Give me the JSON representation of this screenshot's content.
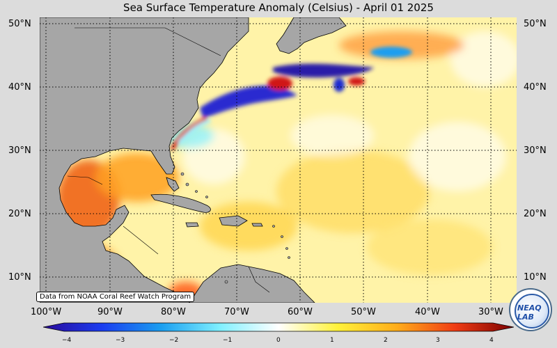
{
  "title": "Sea Surface Temperature Anomaly (Celsius) - April 01 2025",
  "map": {
    "lat_labels": [
      "50°N",
      "40°N",
      "30°N",
      "20°N",
      "10°N"
    ],
    "lon_labels": [
      "100°W",
      "90°W",
      "80°W",
      "70°W",
      "60°W",
      "50°W",
      "40°W",
      "30°W"
    ],
    "land_color": "#a6a6a6",
    "ocean_base_color": "#fff3a8"
  },
  "credit": "Data from NOAA Coral Reef Watch Program",
  "colorbar": {
    "ticks": [
      "−4",
      "−3",
      "−2",
      "−1",
      "0",
      "1",
      "2",
      "3",
      "4"
    ],
    "min": -4,
    "max": 4,
    "colors": [
      "#2a0a9a",
      "#1a3cf0",
      "#1a9ef0",
      "#7ff0ff",
      "#ffffff",
      "#fff23a",
      "#ffae1a",
      "#f03c14",
      "#7a0000"
    ]
  },
  "logo": {
    "icon": "neaq-lab-logo",
    "text": "NEAQ LAB"
  }
}
